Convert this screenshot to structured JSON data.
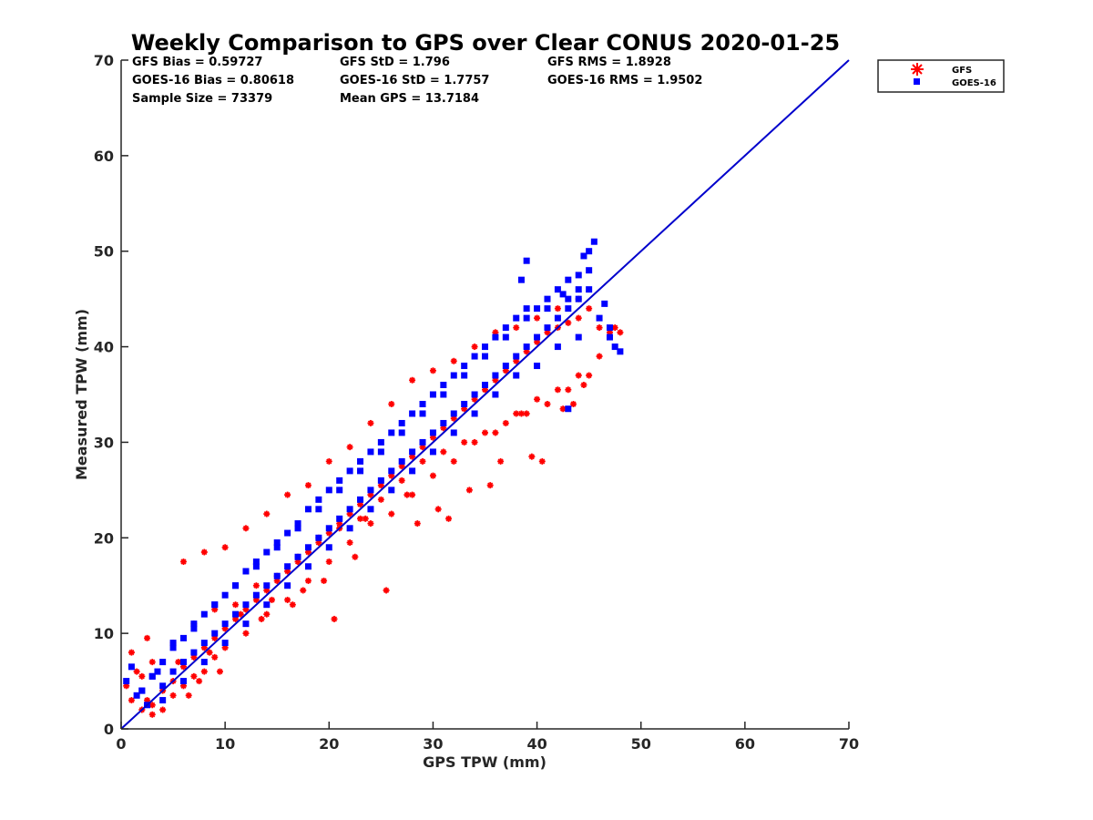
{
  "chart_data": {
    "type": "scatter",
    "title": "Weekly Comparison to GPS over Clear CONUS 2020-01-25",
    "xlabel": "GPS TPW (mm)",
    "ylabel": "Measured TPW (mm)",
    "xlim": [
      0,
      70
    ],
    "ylim": [
      0,
      70
    ],
    "x_ticks": [
      "0",
      "10",
      "20",
      "30",
      "40",
      "50",
      "60",
      "70"
    ],
    "y_ticks": [
      "0",
      "10",
      "20",
      "30",
      "40",
      "50",
      "60",
      "70"
    ],
    "legend_position": "top-right outside",
    "grid": false,
    "reference_line": {
      "x": [
        0,
        70
      ],
      "y": [
        0,
        70
      ],
      "color": "#0000cc"
    },
    "stats": [
      "GFS Bias = 0.59727",
      "GFS StD = 1.796",
      "GFS RMS = 1.8928",
      "GOES-16 Bias = 0.80618",
      "GOES-16 StD = 1.7757",
      "GOES-16 RMS = 1.9502",
      "Sample Size = 73379",
      "Mean GPS = 13.7184"
    ],
    "series": [
      {
        "name": "GFS",
        "marker": "asterisk",
        "color": "#ff0000",
        "x": [
          0.5,
          1,
          1.5,
          2,
          2.5,
          3,
          4,
          5,
          6,
          7,
          8,
          9,
          10,
          11,
          12,
          13,
          14,
          15,
          16,
          17,
          18,
          19,
          20,
          21,
          22,
          23,
          24,
          25,
          26,
          27,
          28,
          29,
          30,
          31,
          32,
          33,
          34,
          35,
          36,
          37,
          38,
          39,
          40,
          41,
          42,
          43,
          44,
          45,
          46,
          47,
          48,
          1,
          2,
          3,
          4,
          5,
          6,
          7,
          8,
          9,
          10,
          12,
          14,
          16,
          18,
          20,
          22,
          24,
          26,
          28,
          30,
          32,
          34,
          36,
          38,
          40,
          42,
          44,
          46,
          6,
          8,
          10,
          12,
          14,
          16,
          18,
          20,
          22,
          24,
          26,
          28,
          30,
          32,
          34,
          36,
          38,
          40,
          42,
          44,
          3,
          5,
          7,
          9,
          11,
          13,
          15,
          17,
          19,
          21,
          23,
          25,
          27,
          29,
          31,
          33,
          35,
          37,
          39,
          41,
          43,
          45,
          6.5,
          7.5,
          9.5,
          13.5,
          16.5,
          19.5,
          23.5,
          27.5,
          31.5,
          35.5,
          39.5,
          43.5,
          47.5,
          2.5,
          5.5,
          8.5,
          11.5,
          14.5,
          17.5,
          20.5,
          22.5,
          25.5,
          28.5,
          30.5,
          33.5,
          36.5,
          38.5,
          40.5,
          42.5,
          44.5
        ],
        "y": [
          4.5,
          8,
          6,
          5.5,
          3,
          2.5,
          4,
          5,
          6.5,
          7.5,
          8.5,
          9.5,
          10.5,
          11.5,
          12.5,
          13.5,
          14.5,
          15.5,
          16.5,
          17.5,
          18.5,
          19.5,
          20.5,
          21.5,
          22.5,
          23.5,
          24.5,
          25.5,
          26.5,
          27.5,
          28.5,
          29.5,
          30.5,
          31.5,
          32.5,
          33.5,
          34.5,
          35.5,
          36.5,
          37.5,
          38.5,
          39.5,
          40.5,
          41.5,
          42,
          42.5,
          43,
          44,
          42,
          41.5,
          41.5,
          3,
          2,
          1.5,
          2,
          3.5,
          4.5,
          5.5,
          6,
          7.5,
          8.5,
          10,
          12,
          13.5,
          15.5,
          17.5,
          19.5,
          21.5,
          22.5,
          24.5,
          26.5,
          28,
          30,
          31,
          33,
          34.5,
          35.5,
          37,
          39,
          17.5,
          18.5,
          19,
          21,
          22.5,
          24.5,
          25.5,
          28,
          29.5,
          32,
          34,
          36.5,
          37.5,
          38.5,
          40,
          41.5,
          42,
          43,
          44,
          45,
          7,
          9,
          11,
          12.5,
          13,
          15,
          16,
          18,
          20,
          21,
          22,
          24,
          26,
          28,
          29,
          30,
          31,
          32,
          33,
          34,
          35.5,
          37,
          3.5,
          5,
          6,
          11.5,
          13,
          15.5,
          22,
          24.5,
          22,
          25.5,
          28.5,
          34,
          42,
          9.5,
          7,
          8,
          12,
          13.5,
          14.5,
          11.5,
          18,
          14.5,
          21.5,
          23,
          25,
          28,
          33,
          28,
          33.5,
          36
        ],
        "size_px": 7
      },
      {
        "name": "GOES-16",
        "marker": "square",
        "color": "#0000ff",
        "x": [
          0.5,
          1,
          1.5,
          2,
          2.5,
          3,
          3.5,
          4,
          5,
          6,
          7,
          8,
          9,
          10,
          11,
          12,
          13,
          14,
          15,
          16,
          17,
          18,
          19,
          20,
          21,
          22,
          23,
          24,
          25,
          26,
          27,
          28,
          29,
          30,
          31,
          32,
          33,
          34,
          35,
          36,
          37,
          38,
          39,
          40,
          41,
          42,
          43,
          44,
          45,
          46,
          47,
          2,
          3,
          4,
          5,
          6,
          7,
          8,
          9,
          10,
          11,
          12,
          13,
          14,
          15,
          16,
          17,
          18,
          19,
          20,
          21,
          22,
          23,
          24,
          25,
          26,
          27,
          28,
          29,
          30,
          31,
          32,
          33,
          34,
          35,
          36,
          37,
          38,
          39,
          40,
          41,
          42,
          43,
          44,
          45,
          4,
          6,
          8,
          10,
          12,
          14,
          16,
          18,
          20,
          22,
          24,
          26,
          28,
          30,
          32,
          34,
          36,
          38,
          40,
          42,
          44,
          5,
          7,
          9,
          11,
          13,
          15,
          17,
          19,
          21,
          23,
          25,
          27,
          29,
          31,
          33,
          35,
          37,
          39,
          41,
          43,
          38.5,
          39,
          42.5,
          44,
          45,
          45.5,
          47,
          47.5,
          48,
          44.5,
          46.5,
          43
        ],
        "y": [
          5,
          6.5,
          3.5,
          4,
          2.5,
          5.5,
          6,
          4.5,
          6,
          7,
          8,
          9,
          10,
          11,
          12,
          13,
          14,
          15,
          16,
          17,
          18,
          19,
          20,
          21,
          22,
          23,
          24,
          25,
          26,
          27,
          28,
          29,
          30,
          31,
          32,
          33,
          34,
          35,
          36,
          37,
          38,
          39,
          40,
          41,
          42,
          43,
          44,
          45,
          46,
          43,
          42,
          4,
          5.5,
          7,
          8.5,
          9.5,
          10.5,
          12,
          13,
          14,
          15,
          16.5,
          17.5,
          18.5,
          19.5,
          20.5,
          21.5,
          23,
          24,
          25,
          26,
          27,
          28,
          29,
          30,
          31,
          32,
          33,
          34,
          35,
          36,
          37,
          38,
          39,
          40,
          41,
          42,
          43,
          44,
          44,
          45,
          46,
          47,
          47.5,
          48,
          3,
          5,
          7,
          9,
          11,
          13,
          15,
          17,
          19,
          21,
          23,
          25,
          27,
          29,
          31,
          33,
          35,
          37,
          38,
          40,
          41,
          9,
          11,
          13,
          15,
          17,
          19,
          21,
          23,
          25,
          27,
          29,
          31,
          33,
          35,
          37,
          39,
          41,
          43,
          44,
          45,
          47,
          49,
          45.5,
          46,
          50,
          51,
          41,
          40,
          39.5,
          49.5,
          44.5,
          33.5
        ],
        "size_px": 7
      }
    ]
  }
}
